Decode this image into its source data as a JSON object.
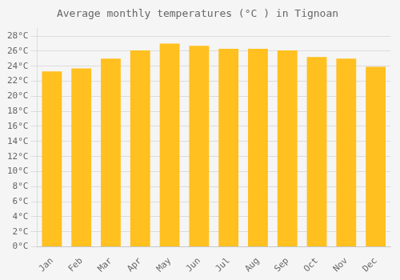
{
  "chart_data": {
    "type": "bar",
    "title": "Average monthly temperatures (°C ) in Tignoan",
    "categories": [
      "Jan",
      "Feb",
      "Mar",
      "Apr",
      "May",
      "Jun",
      "Jul",
      "Aug",
      "Sep",
      "Oct",
      "Nov",
      "Dec"
    ],
    "values": [
      23.3,
      23.7,
      25.0,
      26.1,
      27.0,
      26.7,
      26.3,
      26.3,
      26.1,
      25.2,
      25.0,
      23.9
    ],
    "color": "#FFC020",
    "ylim": [
      0,
      29
    ],
    "yticks": [
      {
        "value": 0,
        "label": "0°C"
      },
      {
        "value": 2,
        "label": "2°C"
      },
      {
        "value": 4,
        "label": "4°C"
      },
      {
        "value": 6,
        "label": "6°C"
      },
      {
        "value": 8,
        "label": "8°C"
      },
      {
        "value": 10,
        "label": "10°C"
      },
      {
        "value": 12,
        "label": "12°C"
      },
      {
        "value": 14,
        "label": "14°C"
      },
      {
        "value": 16,
        "label": "16°C"
      },
      {
        "value": 18,
        "label": "18°C"
      },
      {
        "value": 20,
        "label": "20°C"
      },
      {
        "value": 22,
        "label": "22°C"
      },
      {
        "value": 24,
        "label": "24°C"
      },
      {
        "value": 26,
        "label": "26°C"
      },
      {
        "value": 28,
        "label": "28°C"
      }
    ],
    "grid": true
  }
}
